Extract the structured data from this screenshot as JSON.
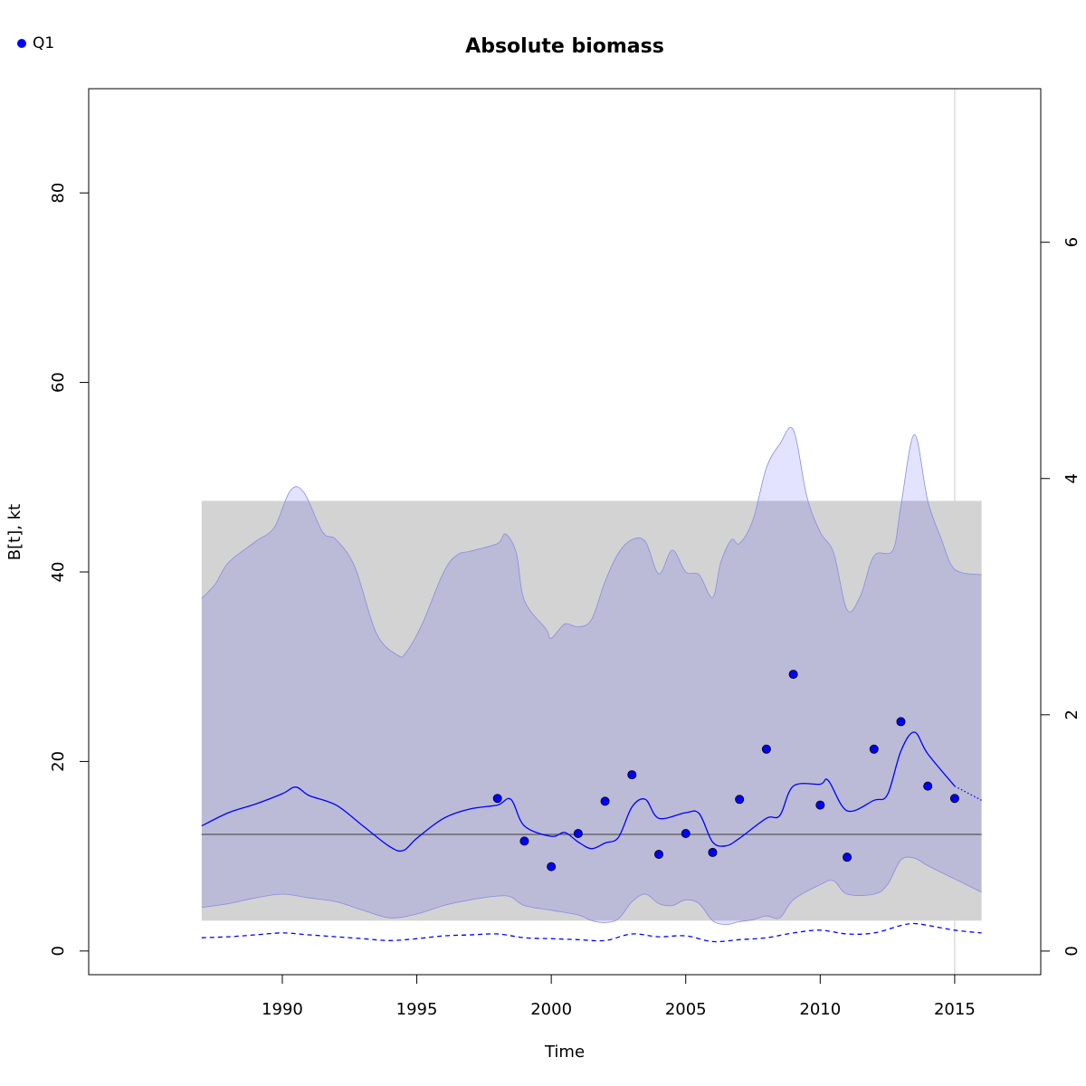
{
  "chart_data": {
    "type": "line",
    "title": "Absolute biomass",
    "xlabel": "Time",
    "ylabel": "B[t], kt",
    "xlim": [
      1982.8,
      2018.2
    ],
    "ylim": [
      -2.5,
      91
    ],
    "y2lim": [
      -0.2,
      7.3
    ],
    "x_ticks": [
      1990,
      1995,
      2000,
      2005,
      2010,
      2015
    ],
    "y_ticks": [
      0,
      20,
      40,
      60,
      80
    ],
    "y2_ticks": [
      0,
      2,
      4,
      6
    ],
    "grid": false,
    "legend": {
      "position": "top-left",
      "entries": [
        {
          "label": "Q1",
          "color": "#0000ff",
          "marker": "circle"
        }
      ]
    },
    "reference_band": {
      "x": [
        1987,
        2016
      ],
      "y": [
        3.2,
        47.5
      ],
      "color": "#d3d3d3"
    },
    "reference_line": {
      "x": [
        1987,
        2016
      ],
      "y": 12.3,
      "color": "#555555"
    },
    "vertical_line": {
      "x": 2015,
      "color": "#d3d3d3"
    },
    "series": [
      {
        "name": "Q1",
        "kind": "points",
        "color": "#0000ff",
        "x": [
          1998,
          1999,
          2000,
          2001,
          2002,
          2003,
          2004,
          2005,
          2006,
          2007,
          2008,
          2009,
          2010,
          2011,
          2012,
          2013,
          2014,
          2015
        ],
        "y": [
          16.1,
          11.6,
          8.9,
          12.4,
          15.8,
          18.6,
          10.2,
          12.4,
          10.4,
          16.0,
          21.3,
          29.2,
          15.4,
          9.9,
          21.3,
          24.2,
          17.4,
          16.1
        ]
      },
      {
        "kind": "line",
        "color": "#0000ff",
        "x": [
          1987,
          1988,
          1989,
          1990,
          1990.5,
          1991,
          1992,
          1993,
          1994,
          1994.5,
          1995,
          1996,
          1997,
          1998,
          1998.5,
          1999,
          2000,
          2000.5,
          2001,
          2001.5,
          2002,
          2002.5,
          2003,
          2003.5,
          2004,
          2005,
          2005.5,
          2006,
          2006.5,
          2007,
          2008,
          2008.5,
          2009,
          2010,
          2010.3,
          2011,
          2012,
          2012.5,
          2013,
          2013.5,
          2014,
          2015
        ],
        "y": [
          13.2,
          14.6,
          15.5,
          16.6,
          17.3,
          16.4,
          15.4,
          13.2,
          11.0,
          10.6,
          11.9,
          14.0,
          15.0,
          15.4,
          16.0,
          13.2,
          12.1,
          12.5,
          11.5,
          10.8,
          11.4,
          12.0,
          15.2,
          16.0,
          14.0,
          14.6,
          14.5,
          11.5,
          11.1,
          11.9,
          14.0,
          14.3,
          17.4,
          17.6,
          18.0,
          14.8,
          15.9,
          16.5,
          21.1,
          23.1,
          20.8,
          17.4
        ]
      },
      {
        "kind": "line",
        "style": "dotted",
        "color": "#0000ff",
        "x": [
          2015,
          2016
        ],
        "y": [
          17.4,
          15.9
        ]
      },
      {
        "kind": "upper-bound",
        "color": "#8a8ae6",
        "x": [
          1987,
          1987.5,
          1988,
          1989,
          1989.7,
          1990.3,
          1990.8,
          1991.5,
          1992,
          1992.7,
          1993.5,
          1994.3,
          1994.6,
          1995.2,
          1996,
          1996.5,
          1997,
          1998,
          1998.3,
          1998.7,
          1999,
          1999.8,
          2000,
          2000.5,
          2001,
          2001.5,
          2002,
          2002.5,
          2003,
          2003.5,
          2004,
          2004.5,
          2005,
          2005.5,
          2006,
          2006.3,
          2006.7,
          2007,
          2007.5,
          2008,
          2008.5,
          2009,
          2009.5,
          2010,
          2010.5,
          2011,
          2011.5,
          2012,
          2012.7,
          2013,
          2013.5,
          2014,
          2014.5,
          2015,
          2016
        ],
        "y": [
          37.2,
          38.7,
          41.0,
          43.2,
          44.7,
          48.6,
          48.4,
          44.2,
          43.4,
          40.5,
          33.5,
          31.2,
          31.5,
          34.5,
          40.0,
          41.8,
          42.2,
          43.0,
          44.0,
          42.0,
          37.0,
          34.0,
          33.0,
          34.5,
          34.2,
          35.0,
          39.0,
          42.0,
          43.4,
          43.2,
          39.8,
          42.3,
          40.0,
          39.7,
          37.3,
          41.0,
          43.4,
          43.0,
          45.5,
          51.0,
          53.5,
          55.0,
          48.0,
          44.2,
          42.0,
          36.0,
          37.5,
          41.7,
          42.3,
          47.0,
          54.5,
          47.5,
          43.5,
          40.3,
          39.7
        ]
      },
      {
        "kind": "lower-bound",
        "color": "#8a8ae6",
        "x": [
          1987,
          1988,
          1989,
          1990,
          1991,
          1992,
          1993,
          1994,
          1995,
          1996,
          1997,
          1998,
          1998.5,
          1999,
          2000,
          2001,
          2001.5,
          2002,
          2002.5,
          2003,
          2003.5,
          2004,
          2004.5,
          2005,
          2005.5,
          2006,
          2006.5,
          2007,
          2007.5,
          2008,
          2008.5,
          2009,
          2010,
          2010.5,
          2011,
          2012,
          2012.5,
          2013,
          2013.5,
          2014,
          2015,
          2016
        ],
        "y": [
          4.6,
          5.0,
          5.6,
          6.0,
          5.6,
          5.2,
          4.3,
          3.5,
          3.9,
          4.8,
          5.4,
          5.8,
          5.7,
          4.8,
          4.3,
          3.8,
          3.2,
          3.0,
          3.4,
          5.2,
          6.0,
          5.0,
          4.8,
          5.4,
          5.0,
          3.2,
          2.8,
          3.1,
          3.3,
          3.7,
          3.5,
          5.4,
          7.0,
          7.4,
          6.0,
          6.0,
          7.0,
          9.6,
          9.8,
          9.0,
          7.6,
          6.2
        ]
      },
      {
        "kind": "line",
        "style": "dashed",
        "color": "#0000ff",
        "x": [
          1987,
          1988,
          1989,
          1990,
          1991,
          1992,
          1993,
          1994,
          1995,
          1996,
          1997,
          1998,
          1999,
          2000,
          2001,
          2002,
          2003,
          2004,
          2005,
          2006,
          2007,
          2008,
          2009,
          2010,
          2011,
          2012,
          2013,
          2013.5,
          2014,
          2015,
          2016
        ],
        "y": [
          1.4,
          1.5,
          1.7,
          1.9,
          1.7,
          1.5,
          1.3,
          1.1,
          1.3,
          1.6,
          1.7,
          1.8,
          1.4,
          1.3,
          1.2,
          1.1,
          1.8,
          1.5,
          1.6,
          1.0,
          1.2,
          1.4,
          1.9,
          2.2,
          1.8,
          1.9,
          2.7,
          2.9,
          2.7,
          2.2,
          1.9
        ]
      }
    ]
  }
}
